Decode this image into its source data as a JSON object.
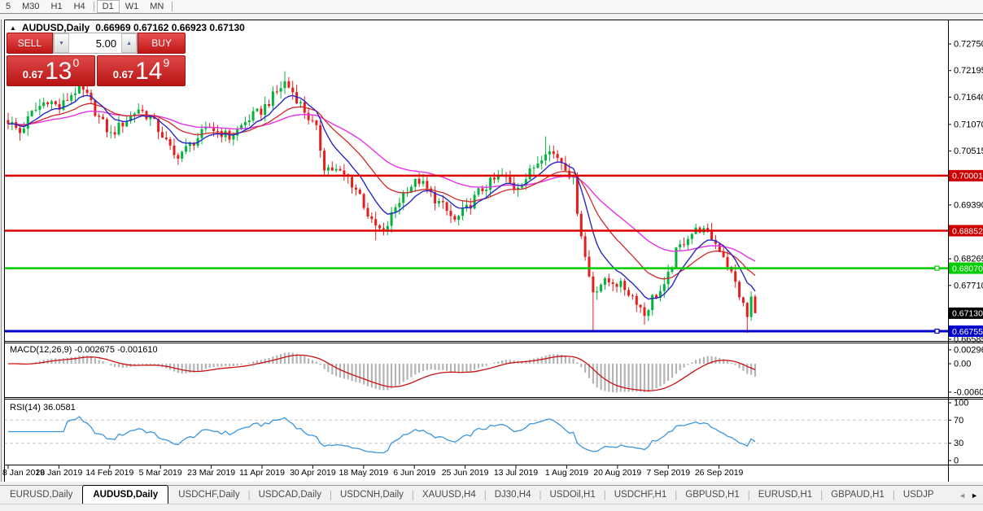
{
  "toolbar": {
    "timeframes": [
      "5",
      "M30",
      "H1",
      "H4",
      "D1",
      "W1",
      "MN"
    ],
    "active": "D1",
    "separators_after": [
      "H4",
      "MN"
    ]
  },
  "header": {
    "collapse_icon": "▲",
    "symbol_title": "AUDUSD,Daily",
    "ohlc": "0.66969 0.67162 0.66923 0.67130"
  },
  "trade_panel": {
    "sell_label": "SELL",
    "buy_label": "BUY",
    "volume": "5.00",
    "down_icon": "▼",
    "up_icon": "▲",
    "sell_price": {
      "small": "0.67",
      "big": "13",
      "sup": "0"
    },
    "buy_price": {
      "small": "0.67",
      "big": "14",
      "sup": "9"
    }
  },
  "indicators": {
    "macd_label": "MACD(12,26,9)",
    "macd_values": "-0.002675 -0.001610",
    "rsi_label": "RSI(14)",
    "rsi_value": "36.0581"
  },
  "chart_data": {
    "type": "candlestick",
    "title": "AUDUSD,Daily",
    "x_labels": [
      "8 Jan 2019",
      "26 Jan 2019",
      "14 Feb 2019",
      "5 Mar 2019",
      "23 Mar 2019",
      "11 Apr 2019",
      "30 Apr 2019",
      "18 May 2019",
      "6 Jun 2019",
      "25 Jun 2019",
      "13 Jul 2019",
      "1 Aug 2019",
      "20 Aug 2019",
      "7 Sep 2019",
      "26 Sep 2019"
    ],
    "price_ticks": [
      0.7275,
      0.72195,
      0.7164,
      0.7107,
      0.70515,
      0.69945,
      0.6939,
      0.68265,
      0.6771,
      0.66585
    ],
    "price_range_ref": {
      "price_top": 0.7275,
      "price_bottom": 0.66585
    },
    "levels": [
      {
        "price": 0.70001,
        "label": "0.70001",
        "color": "#dd0000",
        "width": 2.5,
        "handle": false
      },
      {
        "price": 0.68852,
        "label": "0.68852",
        "color": "#dd0000",
        "width": 2.5,
        "handle": false
      },
      {
        "price": 0.6807,
        "label": "0.68070",
        "color": "#00cc00",
        "width": 2.5,
        "handle": true
      },
      {
        "price": 0.66755,
        "label": "0.66755",
        "color": "#0000cc",
        "width": 3,
        "handle": true
      }
    ],
    "current_price": {
      "label": "0.67130",
      "price": 0.6713,
      "badge_bg": "#000000"
    },
    "num_candles": 190,
    "candle_close_anchors": [
      [
        0,
        0.7115
      ],
      [
        3,
        0.709
      ],
      [
        6,
        0.713
      ],
      [
        10,
        0.716
      ],
      [
        13,
        0.714
      ],
      [
        16,
        0.717
      ],
      [
        18,
        0.7185
      ],
      [
        20,
        0.7165
      ],
      [
        23,
        0.712
      ],
      [
        26,
        0.7085
      ],
      [
        29,
        0.711
      ],
      [
        33,
        0.714
      ],
      [
        36,
        0.712
      ],
      [
        39,
        0.7085
      ],
      [
        42,
        0.704
      ],
      [
        45,
        0.7055
      ],
      [
        48,
        0.708
      ],
      [
        51,
        0.71
      ],
      [
        54,
        0.709
      ],
      [
        56,
        0.708
      ],
      [
        58,
        0.7095
      ],
      [
        61,
        0.712
      ],
      [
        64,
        0.7135
      ],
      [
        67,
        0.7165
      ],
      [
        70,
        0.7195
      ],
      [
        72,
        0.7175
      ],
      [
        75,
        0.7135
      ],
      [
        78,
        0.7095
      ],
      [
        80,
        0.702
      ],
      [
        83,
        0.701
      ],
      [
        86,
        0.6995
      ],
      [
        89,
        0.696
      ],
      [
        92,
        0.69
      ],
      [
        95,
        0.688
      ],
      [
        98,
        0.6935
      ],
      [
        101,
        0.6975
      ],
      [
        104,
        0.699
      ],
      [
        107,
        0.696
      ],
      [
        110,
        0.6935
      ],
      [
        113,
        0.6905
      ],
      [
        116,
        0.693
      ],
      [
        119,
        0.6965
      ],
      [
        122,
        0.6985
      ],
      [
        125,
        0.7
      ],
      [
        128,
        0.6975
      ],
      [
        131,
        0.6995
      ],
      [
        134,
        0.703
      ],
      [
        136,
        0.7055
      ],
      [
        139,
        0.704
      ],
      [
        141,
        0.702
      ],
      [
        143,
        0.699
      ],
      [
        144,
        0.693
      ],
      [
        145,
        0.688
      ],
      [
        146,
        0.683
      ],
      [
        147,
        0.679
      ],
      [
        148,
        0.676
      ],
      [
        150,
        0.6775
      ],
      [
        153,
        0.678
      ],
      [
        156,
        0.6765
      ],
      [
        159,
        0.674
      ],
      [
        161,
        0.671
      ],
      [
        163,
        0.6745
      ],
      [
        166,
        0.6765
      ],
      [
        169,
        0.684
      ],
      [
        172,
        0.6875
      ],
      [
        175,
        0.689
      ],
      [
        178,
        0.687
      ],
      [
        181,
        0.6835
      ],
      [
        184,
        0.6775
      ],
      [
        187,
        0.6705
      ],
      [
        188,
        0.6745
      ],
      [
        189,
        0.6713
      ]
    ],
    "special_wicks": [
      {
        "i": 70,
        "high": 0.7218
      },
      {
        "i": 136,
        "high": 0.7082
      },
      {
        "i": 93,
        "low": 0.6865
      },
      {
        "i": 148,
        "low": 0.6677
      },
      {
        "i": 161,
        "low": 0.6689
      },
      {
        "i": 187,
        "low": 0.6672
      }
    ],
    "ma_periods": {
      "fast": 9,
      "mid": 21,
      "slow": 44
    },
    "colors": {
      "up": "#00b43c",
      "down": "#e41d1d",
      "ma_fast": "#2828c8",
      "ma_mid": "#d02828",
      "ma_slow": "#e632e6",
      "macd_hist": "#b4b4b4",
      "macd_signal": "#cc1111",
      "rsi_line": "#3c96dc",
      "level_red": "#dd0000",
      "level_green": "#00cc00",
      "level_blue": "#0000cc"
    },
    "macd_panel": {
      "params": [
        12,
        26,
        9
      ],
      "current_macd": -0.002675,
      "current_signal": -0.00161,
      "ticks": [
        0.002968,
        0.0,
        -0.006047
      ]
    },
    "rsi_panel": {
      "period": 14,
      "current": 36.0581,
      "ticks": [
        100,
        70,
        30,
        0
      ],
      "dashed_levels": [
        70,
        30
      ],
      "range": [
        0,
        100
      ]
    }
  },
  "tabs": {
    "items": [
      "EURUSD,Daily",
      "AUDUSD,Daily",
      "USDCHF,Daily",
      "USDCAD,Daily",
      "USDCNH,Daily",
      "XAUUSD,H4",
      "DJ30,H4",
      "USDOil,H1",
      "USDCHF,H1",
      "GBPUSD,H1",
      "EURUSD,H1",
      "GBPAUD,H1",
      "USDJP"
    ],
    "active": "AUDUSD,Daily",
    "separator": "|",
    "scroll_left_icon": "◄",
    "scroll_right_icon": "►"
  }
}
